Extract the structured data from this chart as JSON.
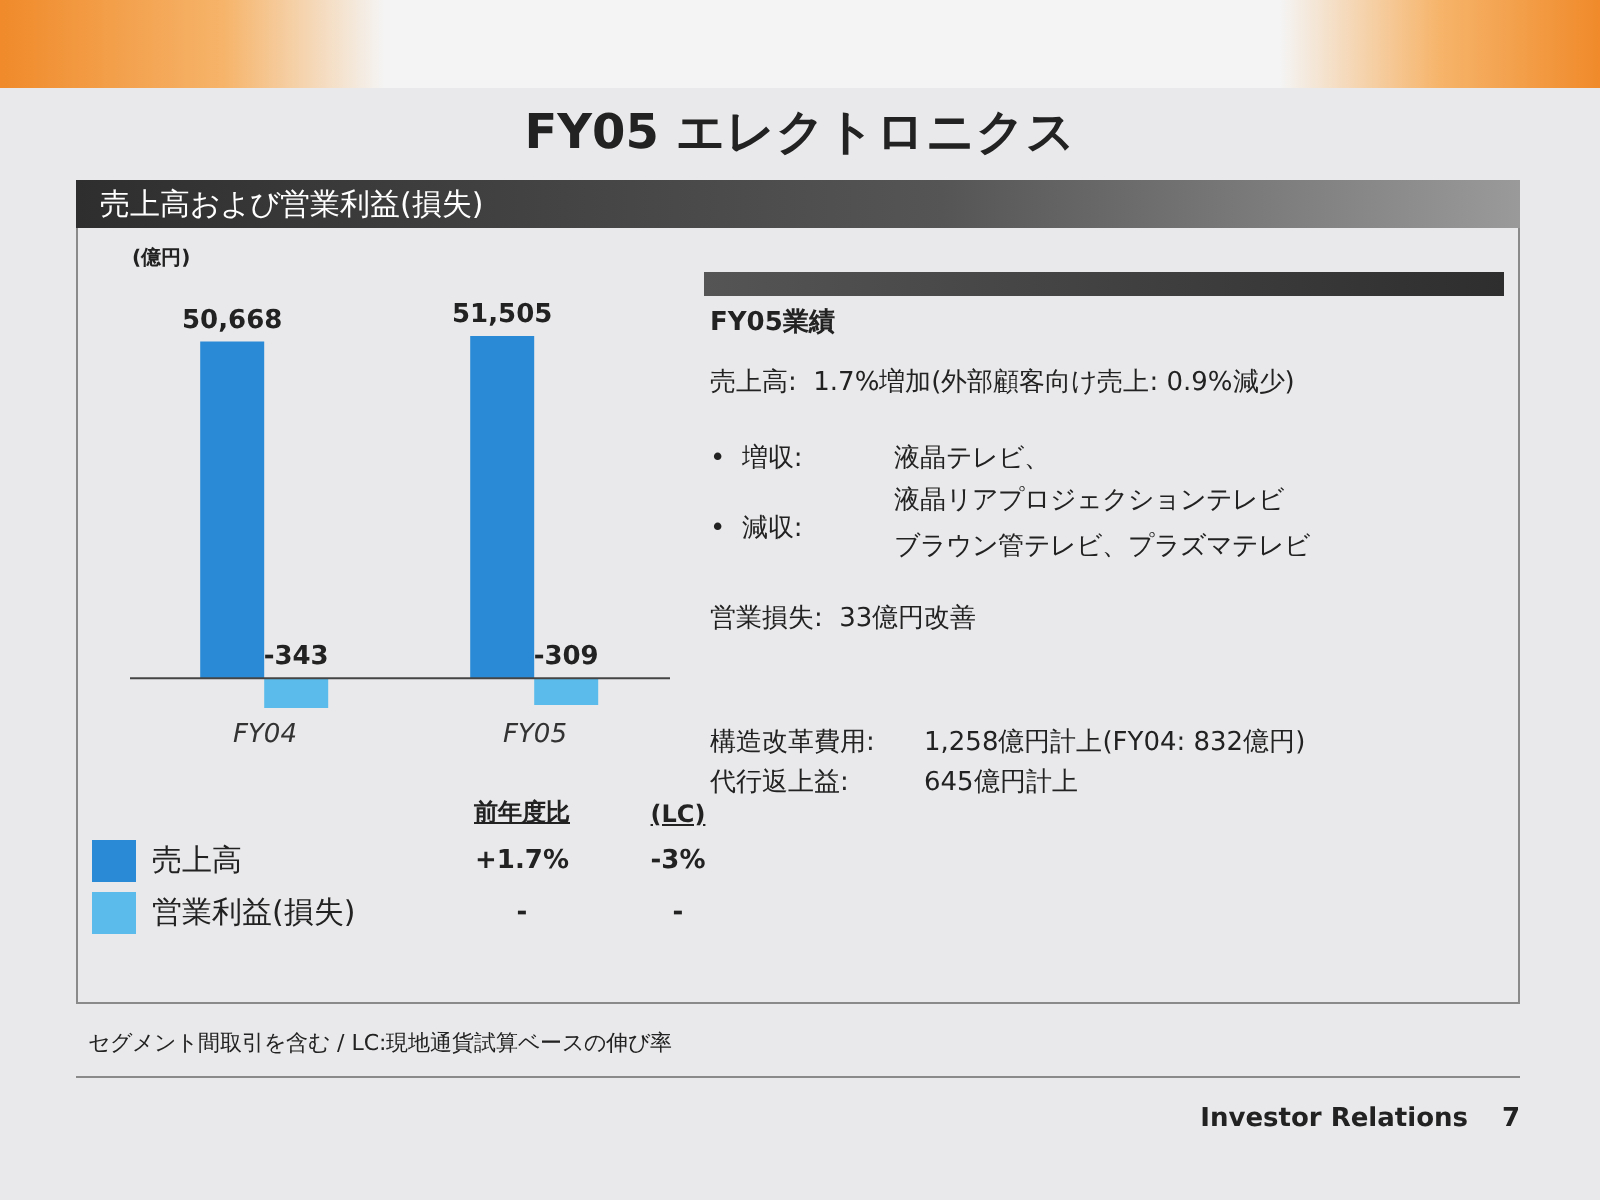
{
  "chart_data": {
    "type": "bar",
    "title": "FY05 エレクトロニクス",
    "subtitle": "売上高および営業利益(損失)",
    "ylabel": "(億円)",
    "categories": [
      "FY04",
      "FY05"
    ],
    "series": [
      {
        "name": "売上高",
        "color": "#2a8ad6",
        "values": [
          50668,
          51505
        ],
        "value_labels": [
          "50,668",
          "51,505"
        ]
      },
      {
        "name": "営業利益(損失)",
        "color": "#5bbcec",
        "values": [
          -343,
          -309
        ],
        "value_labels": [
          "-343",
          "-309"
        ],
        "axis": "y2"
      }
    ],
    "legend": "bottom left",
    "annotations": [
      "前年度比",
      "(LC)",
      "+1.7%",
      "-3%",
      "-",
      "-",
      "FY05業績",
      "売上高:  1.7%増加(外部顧客向け売上: 0.9%減少)",
      "•  増収:",
      "液晶テレビ、",
      "液晶リアプロジェクションテレビ",
      "•  減収:",
      "ブラウン管テレビ、プラズマテレビ",
      "営業損失:  33億円改善",
      "構造改革費用:",
      "1,258億円計上(FY04: 832億円)",
      "代行返上益:",
      "645億円計上",
      "セグメント間取引を含む / LC:現地通貨試算ベースの伸び率",
      "Investor Relations",
      "7"
    ]
  }
}
